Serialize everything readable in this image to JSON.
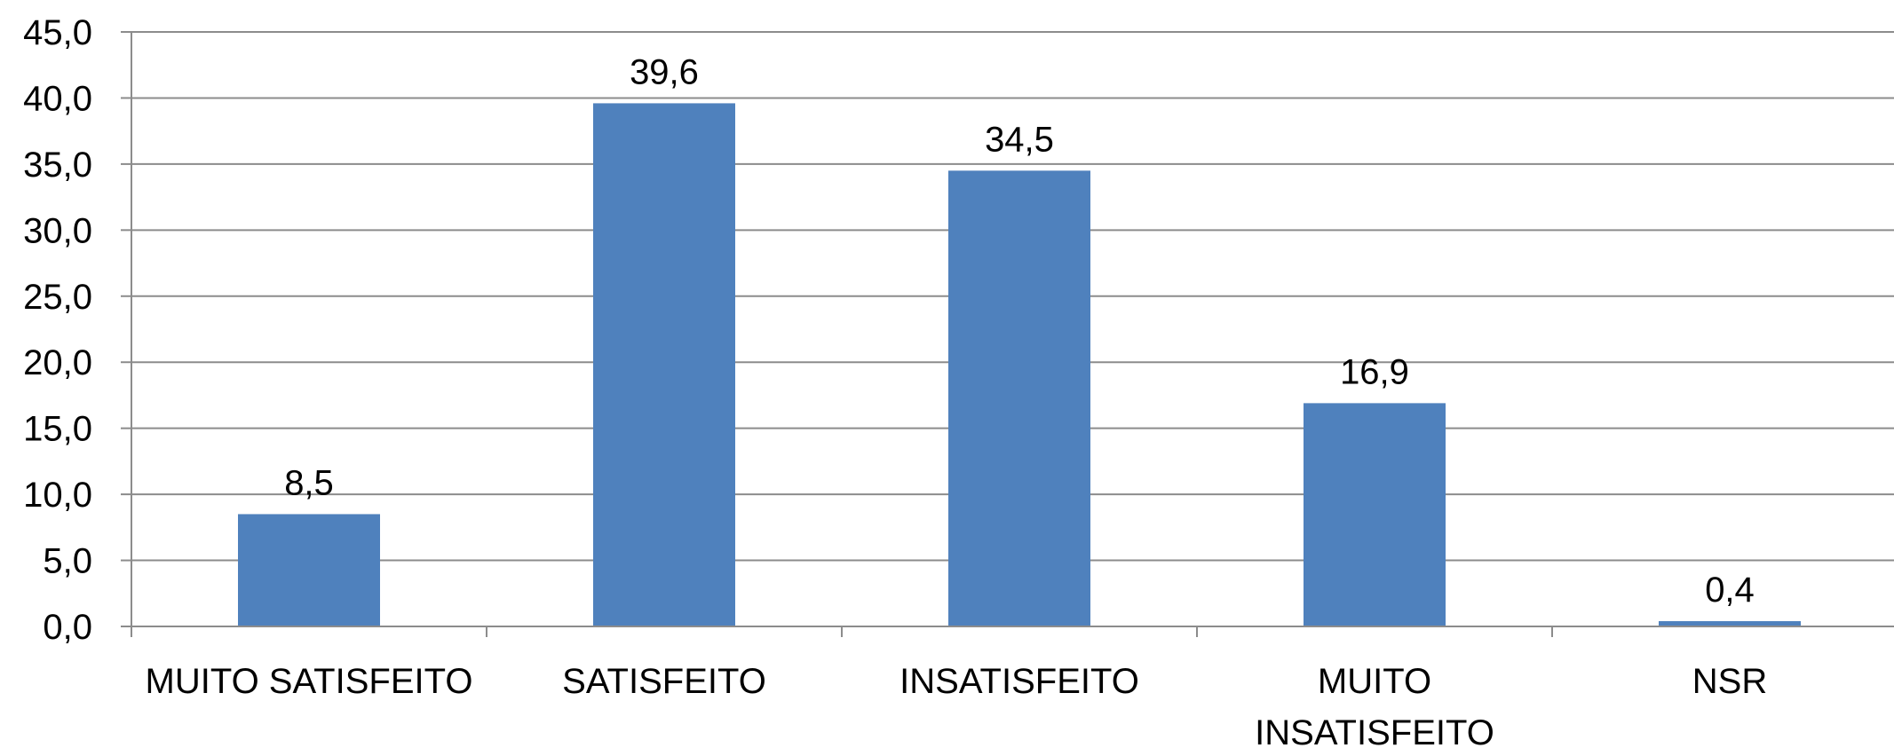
{
  "chart_data": {
    "type": "bar",
    "categories": [
      "MUITO SATISFEITO",
      "SATISFEITO",
      "INSATISFEITO",
      "MUITO INSATISFEITO",
      "NSR"
    ],
    "category_lines": [
      [
        "MUITO SATISFEITO"
      ],
      [
        "SATISFEITO"
      ],
      [
        "INSATISFEITO"
      ],
      [
        "MUITO",
        "INSATISFEITO"
      ],
      [
        "NSR"
      ]
    ],
    "values": [
      8.5,
      39.6,
      34.5,
      16.9,
      0.4
    ],
    "value_labels": [
      "8,5",
      "39,6",
      "34,5",
      "16,9",
      "0,4"
    ],
    "ylim": [
      0,
      45
    ],
    "yticks": [
      0,
      5,
      10,
      15,
      20,
      25,
      30,
      35,
      40,
      45
    ],
    "ytick_labels": [
      "0,0",
      "5,0",
      "10,0",
      "15,0",
      "20,0",
      "25,0",
      "30,0",
      "35,0",
      "40,0",
      "45,0"
    ],
    "title": "",
    "xlabel": "",
    "ylabel": "",
    "grid": true,
    "legend": "none",
    "bar_color": "#4f81bd",
    "grid_color": "#8c8c8c"
  }
}
